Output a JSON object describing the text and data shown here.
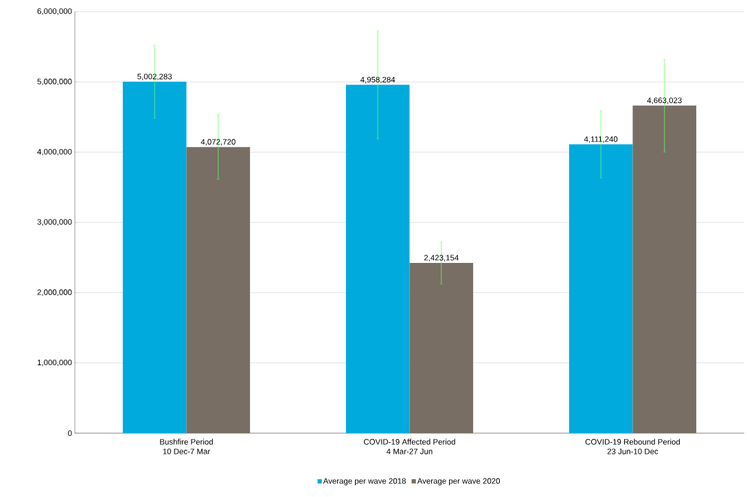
{
  "chart_data": {
    "type": "bar",
    "categories": [
      "Bushfire Period\n10 Dec-7 Mar",
      "COVID-19 Affected Period\n4 Mar-27 Jun",
      "COVID-19 Rebound Period\n23 Jun-10 Dec"
    ],
    "series": [
      {
        "name": "Average per wave 2018",
        "color": "#00aadd",
        "values": [
          5002283,
          4958284,
          4111240
        ],
        "value_labels": [
          "5,002,283",
          "4,958,284",
          "4,111,240"
        ],
        "errors": [
          520000,
          770000,
          480000
        ]
      },
      {
        "name": "Average per wave 2020",
        "color": "#786e64",
        "values": [
          4072720,
          2423154,
          4663023
        ],
        "value_labels": [
          "4,072,720",
          "2,423,154",
          "4,663,023"
        ],
        "errors": [
          460000,
          300000,
          660000
        ]
      }
    ],
    "ylim": [
      0,
      6000000
    ],
    "yticks": [
      {
        "value": 0,
        "label": "0"
      },
      {
        "value": 1000000,
        "label": "1,000,000"
      },
      {
        "value": 2000000,
        "label": "2,000,000"
      },
      {
        "value": 3000000,
        "label": "3,000,000"
      },
      {
        "value": 4000000,
        "label": "4,000,000"
      },
      {
        "value": 5000000,
        "label": "5,000,000"
      },
      {
        "value": 6000000,
        "label": "6,000,000"
      }
    ],
    "grid": "y",
    "legend": "bottom"
  }
}
